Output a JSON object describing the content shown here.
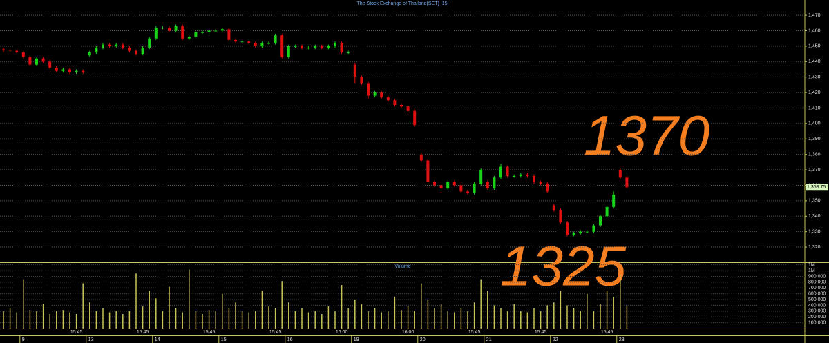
{
  "chart_data": {
    "type": "candlestick",
    "title": "The Stock Exchange of Thailand(SET) [15]",
    "volume_title": "Volume",
    "annotations": [
      "1370",
      "1325"
    ],
    "up_color": "#19d419",
    "down_color": "#e01010",
    "volume_color": "#c9c45a",
    "grid": true,
    "dates": [
      null,
      null,
      null,
      "9",
      null,
      null,
      null,
      null,
      null,
      null,
      null,
      null,
      null,
      "13",
      null,
      null,
      null,
      null,
      null,
      null,
      null,
      null,
      null,
      "14",
      null,
      null,
      null,
      null,
      null,
      null,
      null,
      null,
      null,
      "15",
      null,
      null,
      null,
      null,
      null,
      null,
      null,
      null,
      null,
      "16",
      null,
      null,
      null,
      null,
      null,
      null,
      null,
      null,
      null,
      "19",
      null,
      null,
      null,
      null,
      null,
      null,
      null,
      null,
      null,
      "20",
      null,
      null,
      null,
      null,
      null,
      null,
      null,
      null,
      null,
      "21",
      null,
      null,
      null,
      null,
      null,
      null,
      null,
      null,
      null,
      "22",
      null,
      null,
      null,
      null,
      null,
      null,
      null,
      null,
      null,
      "23",
      null
    ],
    "times": [
      null,
      null,
      null,
      null,
      null,
      null,
      null,
      null,
      null,
      null,
      null,
      "15:45",
      null,
      null,
      null,
      null,
      null,
      null,
      null,
      null,
      null,
      "15:45",
      null,
      null,
      null,
      null,
      null,
      null,
      null,
      null,
      null,
      "15:45",
      null,
      null,
      null,
      null,
      null,
      null,
      null,
      null,
      null,
      "15:45",
      null,
      null,
      null,
      null,
      null,
      null,
      null,
      null,
      null,
      "16:00",
      null,
      null,
      null,
      null,
      null,
      null,
      null,
      null,
      null,
      "16:00",
      null,
      null,
      null,
      null,
      null,
      null,
      null,
      null,
      null,
      "15:45",
      null,
      null,
      null,
      null,
      null,
      null,
      null,
      null,
      null,
      "15:45",
      null,
      null,
      null,
      null,
      null,
      null,
      null,
      null,
      null,
      "15:45",
      null,
      null,
      null
    ],
    "open": [
      1448,
      1447.5,
      1447,
      1446,
      1443,
      1438,
      1442,
      1440,
      1436,
      1434,
      1435,
      1433,
      1434,
      1444,
      1446,
      1449,
      1451,
      1450,
      1451,
      1449,
      1447,
      1445,
      1449,
      1455,
      1462,
      1462,
      1460,
      1463,
      1455,
      1456,
      1459,
      1459,
      1460,
      1460,
      1461,
      1454,
      1453,
      1453,
      1452,
      1450,
      1452,
      1452,
      1457,
      1443,
      1450,
      1450,
      1449,
      1449,
      1450,
      1449,
      1450,
      1452,
      1446,
      1438,
      1430,
      1426,
      1418,
      1420,
      1417,
      1415,
      1412,
      1411,
      1408,
      1380,
      1376,
      1362,
      1360,
      1358,
      1362,
      1360,
      1356,
      1355,
      1361,
      1362,
      1358,
      1365,
      1372,
      1366,
      1366,
      1367,
      1366,
      1362,
      1361,
      1347,
      1344,
      1336,
      1328,
      1329,
      1330,
      1330,
      1334,
      1340,
      1346,
      1370,
      1365
    ],
    "high": [
      1449,
      1448,
      1448,
      1447,
      1444,
      1443,
      1443,
      1441,
      1437,
      1436,
      1436,
      1435,
      1435,
      1447,
      1450,
      1452,
      1452,
      1452,
      1452,
      1450,
      1448,
      1450,
      1456,
      1463,
      1463,
      1463,
      1464,
      1464,
      1457,
      1460,
      1460,
      1461,
      1461,
      1462,
      1462,
      1455,
      1454,
      1454,
      1453,
      1453,
      1453,
      1458,
      1458,
      1451,
      1451,
      1451,
      1450,
      1451,
      1451,
      1451,
      1453,
      1453,
      1447,
      1439,
      1431,
      1427,
      1421,
      1421,
      1418,
      1416,
      1413,
      1412,
      1409,
      1381,
      1377,
      1363,
      1361,
      1363,
      1363,
      1361,
      1357,
      1362,
      1371,
      1363,
      1366,
      1374,
      1373,
      1367,
      1368,
      1368,
      1367,
      1363,
      1362,
      1348,
      1345,
      1337,
      1330,
      1331,
      1331,
      1335,
      1341,
      1347,
      1356,
      1371,
      1366
    ],
    "low": [
      1446,
      1446,
      1445,
      1442,
      1437,
      1437,
      1439,
      1435,
      1433,
      1433,
      1432,
      1432,
      1432,
      1443,
      1445,
      1448,
      1449,
      1449,
      1448,
      1446,
      1444,
      1444,
      1448,
      1454,
      1461,
      1459,
      1459,
      1454,
      1454,
      1455,
      1458,
      1458,
      1459,
      1459,
      1453,
      1452,
      1452,
      1451,
      1449,
      1449,
      1451,
      1451,
      1442,
      1442,
      1449,
      1448,
      1448,
      1448,
      1448,
      1448,
      1449,
      1445,
      1445,
      1426,
      1425,
      1416,
      1417,
      1416,
      1414,
      1411,
      1410,
      1407,
      1398,
      1375,
      1361,
      1359,
      1355,
      1357,
      1359,
      1355,
      1354,
      1354,
      1360,
      1357,
      1357,
      1364,
      1365,
      1365,
      1365,
      1365,
      1361,
      1360,
      1355,
      1343,
      1335,
      1327,
      1327,
      1328,
      1329,
      1329,
      1333,
      1339,
      1345,
      1364,
      1358
    ],
    "close": [
      1447.5,
      1447,
      1446,
      1443,
      1438,
      1442,
      1440,
      1436,
      1434,
      1435,
      1433,
      1434,
      1433,
      1446,
      1449,
      1451,
      1450,
      1451,
      1449,
      1447,
      1445,
      1449,
      1455,
      1462,
      1462,
      1460,
      1463,
      1455,
      1456,
      1459,
      1459,
      1460,
      1460,
      1461,
      1454,
      1453,
      1453,
      1452,
      1450,
      1452,
      1452,
      1457,
      1443,
      1450,
      1450,
      1449,
      1449,
      1450,
      1449,
      1450,
      1452,
      1446,
      1446,
      1430,
      1426,
      1418,
      1420,
      1417,
      1415,
      1412,
      1411,
      1408,
      1399,
      1376,
      1362,
      1360,
      1358,
      1362,
      1360,
      1356,
      1355,
      1361,
      1370,
      1358,
      1365,
      1372,
      1366,
      1366,
      1367,
      1366,
      1362,
      1361,
      1356,
      1344,
      1336,
      1328,
      1329,
      1330,
      1330,
      1334,
      1340,
      1346,
      1354,
      1365,
      1358.75
    ],
    "volume": [
      300000,
      350000,
      280000,
      850000,
      320000,
      300000,
      420000,
      250000,
      300000,
      320000,
      280000,
      250000,
      780000,
      450000,
      300000,
      350000,
      280000,
      300000,
      250000,
      300000,
      950000,
      380000,
      650000,
      520000,
      300000,
      720000,
      350000,
      280000,
      1020000,
      300000,
      250000,
      320000,
      300000,
      600000,
      350000,
      450000,
      300000,
      280000,
      300000,
      650000,
      380000,
      350000,
      820000,
      450000,
      300000,
      350000,
      280000,
      300000,
      250000,
      380000,
      300000,
      750000,
      350000,
      500000,
      420000,
      300000,
      350000,
      280000,
      300000,
      550000,
      320000,
      380000,
      300000,
      780000,
      500000,
      350000,
      420000,
      300000,
      280000,
      350000,
      300000,
      450000,
      850000,
      650000,
      400000,
      350000,
      300000,
      420000,
      300000,
      280000,
      350000,
      300000,
      400000,
      450000,
      650000,
      400000,
      350000,
      300000,
      600000,
      300000,
      420000,
      650000,
      550000,
      930000,
      400000
    ],
    "ylim": [
      1310.2,
      1474.5
    ],
    "yticks": [
      {
        "value": 1320,
        "label": "1,320"
      },
      {
        "value": 1330,
        "label": "1,330"
      },
      {
        "value": 1340,
        "label": "1,340"
      },
      {
        "value": 1350,
        "label": "1,350"
      },
      {
        "value": 1360,
        "label": "1,360"
      },
      {
        "value": 1370,
        "label": "1,370"
      },
      {
        "value": 1380,
        "label": "1,380"
      },
      {
        "value": 1390,
        "label": "1,390"
      },
      {
        "value": 1400,
        "label": "1,400"
      },
      {
        "value": 1410,
        "label": "1,410"
      },
      {
        "value": 1420,
        "label": "1,420"
      },
      {
        "value": 1430,
        "label": "1,430"
      },
      {
        "value": 1440,
        "label": "1,440"
      },
      {
        "value": 1450,
        "label": "1,450"
      },
      {
        "value": 1460,
        "label": "1,460"
      },
      {
        "value": 1470,
        "label": "1,470"
      }
    ],
    "last": {
      "value": 1358.75,
      "label": "1,358.75"
    },
    "y2lim": [
      0,
      1120000
    ],
    "y2ticks": [
      {
        "value": 100000,
        "label": "100,000"
      },
      {
        "value": 200000,
        "label": "200,000"
      },
      {
        "value": 300000,
        "label": "300,000"
      },
      {
        "value": 400000,
        "label": "400,000"
      },
      {
        "value": 500000,
        "label": "500,000"
      },
      {
        "value": 600000,
        "label": "600,000"
      },
      {
        "value": 700000,
        "label": "700,000"
      },
      {
        "value": 800000,
        "label": "800,000"
      },
      {
        "value": 900000,
        "label": "900,000"
      },
      {
        "value": 1000000,
        "label": "1M"
      },
      {
        "value": 1100000,
        "label": "1M"
      }
    ]
  }
}
